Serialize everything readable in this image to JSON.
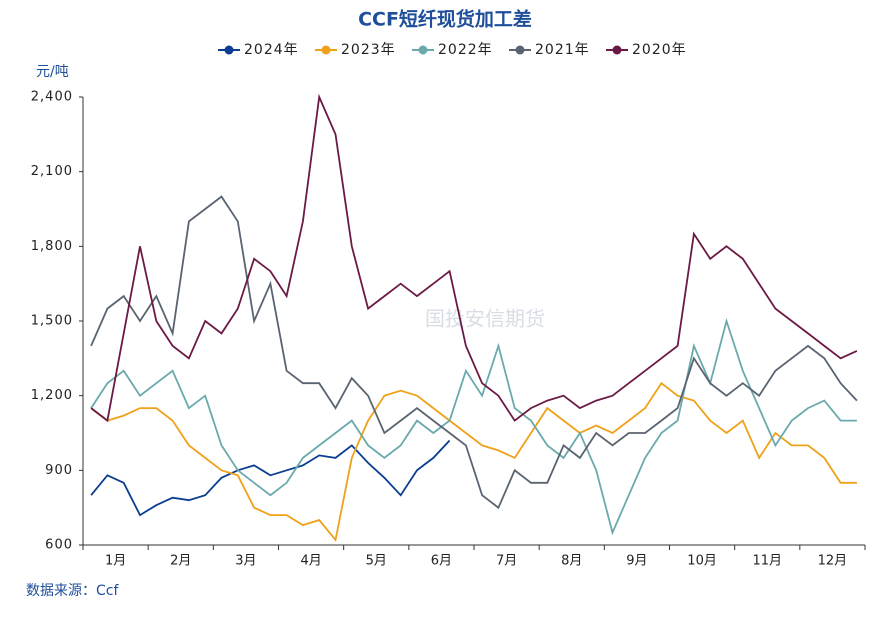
{
  "chart_data": {
    "type": "line",
    "title": "CCF短纤现货加工差",
    "y_unit": "元/吨",
    "source": "数据来源：Ccf",
    "watermark": "国投安信期货",
    "categories": [
      null,
      "1月",
      null,
      null,
      null,
      "2月",
      null,
      null,
      null,
      "3月",
      null,
      null,
      null,
      "4月",
      null,
      null,
      null,
      "5月",
      null,
      null,
      null,
      "6月",
      null,
      null,
      null,
      "7月",
      null,
      null,
      null,
      "8月",
      null,
      null,
      null,
      "9月",
      null,
      null,
      null,
      "10月",
      null,
      null,
      null,
      "11月",
      null,
      null,
      null,
      "12月",
      null,
      null
    ],
    "ylim": [
      600,
      2400
    ],
    "yticks": [
      600,
      900,
      {
        "value": 1200,
        "label": "1,200"
      },
      {
        "value": 1500,
        "label": "1,500"
      },
      {
        "value": 1800,
        "label": "1,800"
      },
      {
        "value": 2100,
        "label": "2,100"
      },
      {
        "value": 2400,
        "label": "2,400"
      }
    ],
    "legend": "top",
    "series": [
      {
        "name": "2024年",
        "color": "#0b3d91",
        "values": [
          800,
          880,
          850,
          720,
          760,
          790,
          780,
          800,
          870,
          900,
          920,
          880,
          900,
          920,
          960,
          950,
          1000,
          930,
          870,
          800,
          900,
          950,
          1020,
          null,
          null,
          null,
          null,
          null,
          null,
          null,
          null,
          null,
          null,
          null,
          null,
          null,
          null,
          null,
          null,
          null,
          null,
          null,
          null,
          null,
          null,
          null,
          null,
          null
        ]
      },
      {
        "name": "2023年",
        "color": "#f0a11a",
        "values": [
          1150,
          1100,
          1120,
          1150,
          1150,
          1100,
          1000,
          950,
          900,
          880,
          750,
          720,
          720,
          680,
          700,
          620,
          950,
          1100,
          1200,
          1220,
          1200,
          1150,
          1100,
          1050,
          1000,
          980,
          950,
          1050,
          1150,
          1100,
          1050,
          1080,
          1050,
          1100,
          1150,
          1250,
          1200,
          1180,
          1100,
          1050,
          1100,
          950,
          1050,
          1000,
          1000,
          950,
          850,
          850
        ]
      },
      {
        "name": "2022年",
        "color": "#6aa9ac",
        "values": [
          1150,
          1250,
          1300,
          1200,
          1250,
          1300,
          1150,
          1200,
          1000,
          900,
          850,
          800,
          850,
          950,
          1000,
          1050,
          1100,
          1000,
          950,
          1000,
          1100,
          1050,
          1100,
          1300,
          1200,
          1400,
          1150,
          1100,
          1000,
          950,
          1050,
          900,
          650,
          800,
          950,
          1050,
          1100,
          1400,
          1250,
          1500,
          1300,
          1150,
          1000,
          1100,
          1150,
          1180,
          1100,
          1100
        ]
      },
      {
        "name": "2021年",
        "color": "#5a6470",
        "values": [
          1400,
          1550,
          1600,
          1500,
          1600,
          1450,
          1900,
          1950,
          2000,
          1900,
          1500,
          1650,
          1300,
          1250,
          1250,
          1150,
          1270,
          1200,
          1050,
          1100,
          1150,
          1100,
          1050,
          1000,
          800,
          750,
          900,
          850,
          850,
          1000,
          950,
          1050,
          1000,
          1050,
          1050,
          1100,
          1150,
          1350,
          1250,
          1200,
          1250,
          1200,
          1300,
          1350,
          1400,
          1350,
          1250,
          1180
        ]
      },
      {
        "name": "2020年",
        "color": "#6b1a45",
        "values": [
          1150,
          1100,
          1450,
          1800,
          1500,
          1400,
          1350,
          1500,
          1450,
          1550,
          1750,
          1700,
          1600,
          1900,
          2400,
          2250,
          1800,
          1550,
          1600,
          1650,
          1600,
          1650,
          1700,
          1400,
          1250,
          1200,
          1100,
          1150,
          1180,
          1200,
          1150,
          1180,
          1200,
          1250,
          1300,
          1350,
          1400,
          1850,
          1750,
          1800,
          1750,
          1650,
          1550,
          1500,
          1450,
          1400,
          1350,
          1380
        ]
      }
    ]
  }
}
